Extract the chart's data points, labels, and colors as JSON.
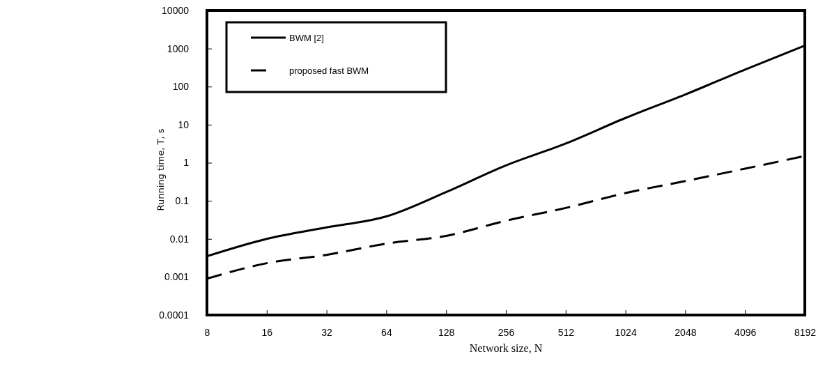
{
  "chart_data": {
    "type": "line",
    "xlabel": "Network size, N",
    "ylabel": "Running time, T, s",
    "categories": [
      "8",
      "16",
      "32",
      "64",
      "128",
      "256",
      "512",
      "1024",
      "2048",
      "4096",
      "8192"
    ],
    "series": [
      {
        "name": "BWM [2]",
        "color": "#000000",
        "line_style": "solid",
        "values": [
          0.0035,
          0.01,
          0.02,
          0.039,
          0.17,
          0.85,
          3.2,
          15,
          62,
          280,
          1200
        ]
      },
      {
        "name": "proposed fast BWM",
        "color": "#000000",
        "line_style": "dashed",
        "values": [
          0.0009,
          0.0023,
          0.0038,
          0.0075,
          0.012,
          0.03,
          0.065,
          0.16,
          0.33,
          0.7,
          1.5
        ]
      }
    ],
    "log": true,
    "ylim": [
      0.0001,
      10000
    ],
    "yticks": [
      0.0001,
      0.001,
      0.01,
      0.1,
      1,
      10,
      100,
      1000,
      10000
    ],
    "legend": "top left",
    "marker": "none"
  }
}
